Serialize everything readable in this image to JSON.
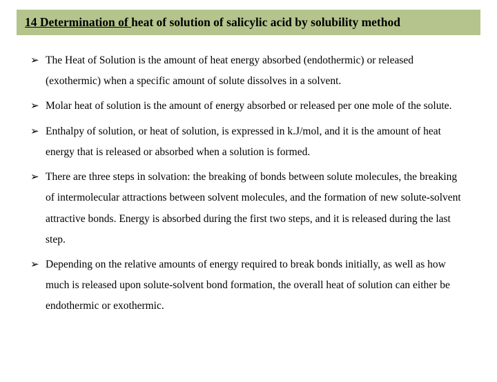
{
  "header": {
    "prefix": "14 Determination of ",
    "rest": "heat of solution of salicylic acid by solubility method"
  },
  "bullets": [
    {
      "text": "The Heat of Solution is the amount of heat energy absorbed (endothermic) or released (exothermic) when a specific amount of solute dissolves in a solvent."
    },
    {
      "text": " Molar heat of solution is the amount of energy absorbed or released per one mole of the solute."
    },
    {
      "text": "Enthalpy of solution, or heat of solution, is expressed in k.J/mol, and it is the amount of heat energy that is released or absorbed when a solution is formed."
    },
    {
      "text": "There are three steps in solvation: the breaking of bonds between solute molecules, the breaking of intermolecular attractions between solvent molecules, and the formation of new solute-solvent attractive bonds. Energy is absorbed during the first two steps, and it is released during the last step."
    },
    {
      "text": "Depending on the relative amounts of energy required to break bonds initially, as well as how much is released upon solute-solvent bond formation, the overall heat of solution can either be endothermic or exothermic."
    }
  ],
  "style": {
    "header_bg": "#b4c48c",
    "page_bg": "#ffffff",
    "text_color": "#000000",
    "bullet_glyph": "➢"
  }
}
